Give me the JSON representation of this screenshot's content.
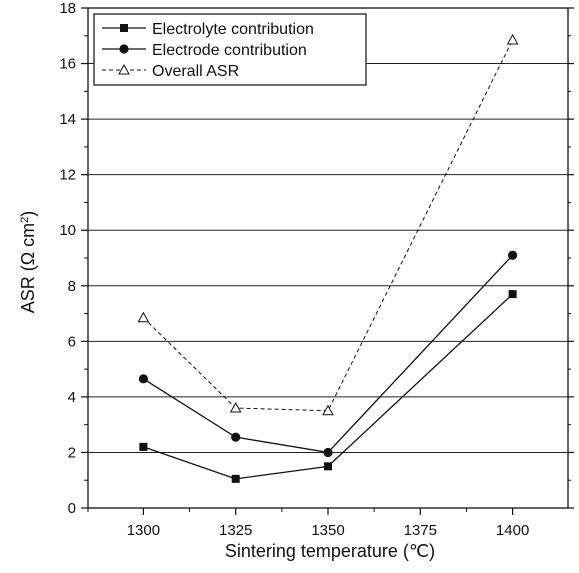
{
  "chart_data": {
    "type": "line",
    "xlabel": "Sintering temperature (℃)",
    "ylabel_main": "ASR (Ω cm",
    "ylabel_sup": "2",
    "ylabel_close": ")",
    "xlim": [
      1285,
      1415
    ],
    "ylim": [
      0,
      18
    ],
    "xticks": [
      1300,
      1325,
      1350,
      1375,
      1400
    ],
    "yticks": [
      0,
      2,
      4,
      6,
      8,
      10,
      12,
      14,
      16,
      18
    ],
    "grid": "horizontal",
    "legend_position": "top-left",
    "series": [
      {
        "name": "Electrolyte contribution",
        "marker": "square",
        "line": "solid",
        "x": [
          1300,
          1325,
          1350,
          1400
        ],
        "y": [
          2.2,
          1.05,
          1.5,
          7.7
        ]
      },
      {
        "name": "Electrode contribution",
        "marker": "circle",
        "line": "solid",
        "x": [
          1300,
          1325,
          1350,
          1400
        ],
        "y": [
          4.65,
          2.55,
          2.0,
          9.1
        ]
      },
      {
        "name": "Overall ASR",
        "marker": "open-triangle",
        "line": "dashed",
        "x": [
          1300,
          1325,
          1350,
          1400
        ],
        "y": [
          6.85,
          3.6,
          3.5,
          16.85
        ]
      }
    ]
  },
  "colors": {
    "line": "#111111",
    "grid": "#222222"
  }
}
